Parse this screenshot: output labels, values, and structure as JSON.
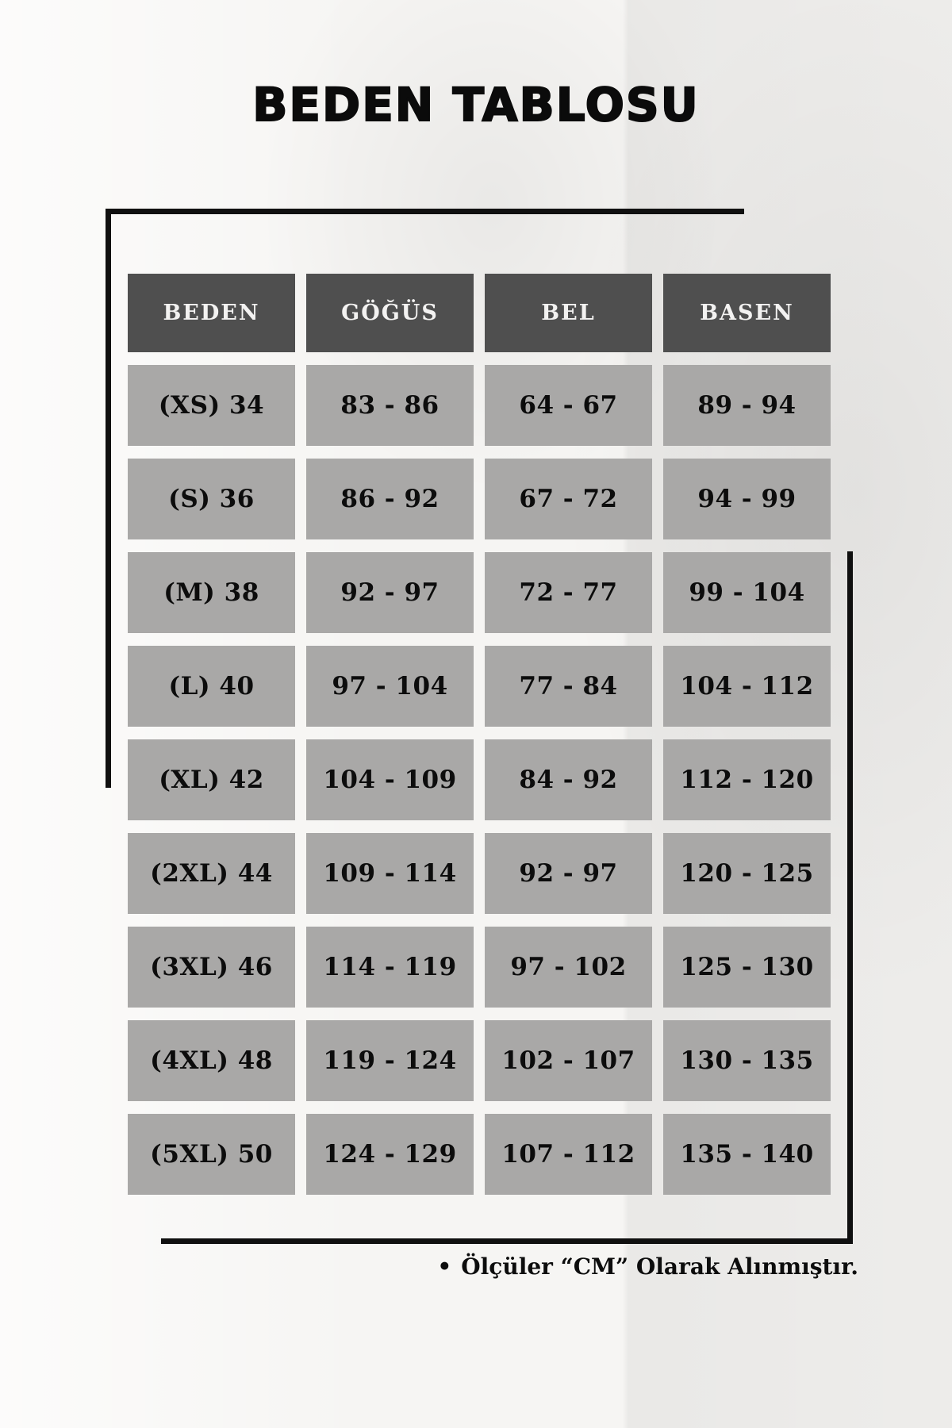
{
  "page": {
    "title": "BEDEN TABLOSU",
    "footnote_bullet": "•",
    "footnote": "Ölçüler “CM” Olarak Alınmıştır."
  },
  "colors": {
    "background": "#f6f5f3",
    "header_cell_bg": "#4f4f4f",
    "header_cell_text": "#f3f2f1",
    "body_cell_bg": "#a9a8a7",
    "body_cell_text": "#0c0c0c",
    "frame_line": "#101010",
    "title_text": "#0b0b0b"
  },
  "chart_data": {
    "type": "table",
    "title": "BEDEN TABLOSU",
    "unit": "CM",
    "columns": [
      "BEDEN",
      "GÖĞÜS",
      "BEL",
      "BASEN"
    ],
    "rows": [
      [
        "(XS) 34",
        "83 - 86",
        "64 - 67",
        "89 - 94"
      ],
      [
        "(S) 36",
        "86 - 92",
        "67 - 72",
        "94 - 99"
      ],
      [
        "(M) 38",
        "92 - 97",
        "72 - 77",
        "99 - 104"
      ],
      [
        "(L) 40",
        "97 - 104",
        "77 - 84",
        "104 - 112"
      ],
      [
        "(XL) 42",
        "104 - 109",
        "84 - 92",
        "112 - 120"
      ],
      [
        "(2XL) 44",
        "109 - 114",
        "92 - 97",
        "120 - 125"
      ],
      [
        "(3XL) 46",
        "114 - 119",
        "97 - 102",
        "125 - 130"
      ],
      [
        "(4XL) 48",
        "119 - 124",
        "102 - 107",
        "130 - 135"
      ],
      [
        "(5XL) 50",
        "124 - 129",
        "107 - 112",
        "135 - 140"
      ]
    ]
  }
}
